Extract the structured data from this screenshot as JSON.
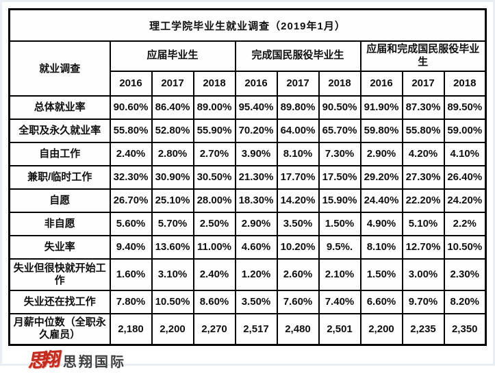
{
  "colors": {
    "banner_bg": "#c00000",
    "banner_text": "#ffffff",
    "border": "#000000",
    "logo_red": "#c22a1e"
  },
  "chart_data": {
    "type": "table",
    "title": "理工学院毕业生就业调查（2019年1月）",
    "corner_header": "就业调查",
    "column_groups": [
      "应届毕业生",
      "完成国民服役毕业生",
      "应届和完成国民服役毕业生"
    ],
    "year_columns": [
      "2016",
      "2017",
      "2018",
      "2016",
      "2017",
      "2018",
      "2016",
      "2017",
      "2018"
    ],
    "rows": [
      {
        "label": "总体就业率",
        "values": [
          "90.60%",
          "86.40%",
          "89.00%",
          "95.40%",
          "89.80%",
          "90.50%",
          "91.90%",
          "87.30%",
          "89.50%"
        ]
      },
      {
        "label": "全职及永久就业率",
        "values": [
          "55.80%",
          "52.80%",
          "55.90%",
          "70.20%",
          "64.00%",
          "65.70%",
          "59.80%",
          "55.80%",
          "59.00%"
        ]
      },
      {
        "label": "自由工作",
        "values": [
          "2.40%",
          "2.80%",
          "2.70%",
          "3.90%",
          "8.10%",
          "7.30%",
          "2.90%",
          "4.20%",
          "4.10%"
        ]
      },
      {
        "label": "兼职/临时工作",
        "values": [
          "32.30%",
          "30.90%",
          "30.50%",
          "21.30%",
          "17.70%",
          "17.50%",
          "29.20%",
          "27.30%",
          "26.40%"
        ]
      },
      {
        "label": "自愿",
        "values": [
          "26.70%",
          "25.10%",
          "28.00%",
          "18.30%",
          "14.20%",
          "15.90%",
          "24.40%",
          "22.20%",
          "24.20%"
        ]
      },
      {
        "label": "非自愿",
        "values": [
          "5.60%",
          "5.70%",
          "2.50%",
          "2.90%",
          "3.50%",
          "1.50%",
          "4.90%",
          "5.10%",
          "2.2%"
        ]
      },
      {
        "label": "失业率",
        "values": [
          "9.40%",
          "13.60%",
          "11.00%",
          "4.60%",
          "10.20%",
          "9.5%.",
          "8.10%",
          "12.70%",
          "10.50%"
        ]
      },
      {
        "label": "失业但很快就开始工作",
        "values": [
          "1.60%",
          "3.10%",
          "2.40%",
          "1.20%",
          "2.60%",
          "2.10%",
          "1.50%",
          "3.00%",
          "2.30%"
        ]
      },
      {
        "label": "失业还在找工作",
        "values": [
          "7.80%",
          "10.50%",
          "8.60%",
          "3.50%",
          "7.60%",
          "7.40%",
          "6.60%",
          "9.70%",
          "8.20%"
        ]
      },
      {
        "label": "月薪中位数（全职永久雇员）",
        "values": [
          "2,180",
          "2,200",
          "2,270",
          "2,517",
          "2,480",
          "2,501",
          "2,200",
          "2,235",
          "2,350"
        ]
      }
    ]
  },
  "footer": {
    "logo_mark": "思翔",
    "logo_text": "思翔国际"
  }
}
